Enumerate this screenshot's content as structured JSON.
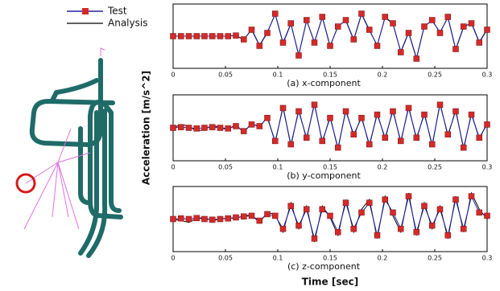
{
  "chart_data": [
    {
      "type": "line",
      "title": "(a) x-component",
      "x": [
        0,
        0.0075,
        0.015,
        0.0225,
        0.03,
        0.0375,
        0.045,
        0.0525,
        0.06,
        0.0675,
        0.075,
        0.0825,
        0.09,
        0.0975,
        0.105,
        0.1125,
        0.12,
        0.1275,
        0.135,
        0.1425,
        0.15,
        0.1575,
        0.165,
        0.1725,
        0.18,
        0.1875,
        0.195,
        0.2025,
        0.21,
        0.2175,
        0.225,
        0.2325,
        0.24,
        0.2475,
        0.255,
        0.2625,
        0.27,
        0.2775,
        0.285,
        0.2925,
        0.3
      ],
      "series": [
        {
          "name": "Analysis",
          "color": "#000000",
          "values": [
            0,
            0,
            0,
            0,
            0,
            0,
            0,
            0,
            0.03,
            -0.12,
            0.22,
            -0.28,
            0.12,
            0.68,
            -0.22,
            0.38,
            -0.58,
            0.48,
            -0.18,
            0.58,
            -0.32,
            0.32,
            0.48,
            -0.12,
            0.68,
            0.18,
            -0.28,
            0.58,
            0.38,
            -0.48,
            0.12,
            -0.68,
            0.32,
            0.48,
            0.12,
            0.58,
            -0.42,
            0.28,
            0.42,
            -0.18,
            0.22
          ]
        },
        {
          "name": "Test",
          "color": "#2020a0",
          "marker": "square",
          "marker_color": "#d42a2a",
          "values": [
            0,
            0,
            0,
            0,
            0,
            0,
            0,
            0,
            0.02,
            -0.1,
            0.2,
            -0.3,
            0.1,
            0.7,
            -0.2,
            0.4,
            -0.6,
            0.5,
            -0.2,
            0.6,
            -0.3,
            0.3,
            0.5,
            -0.1,
            0.7,
            0.2,
            -0.3,
            0.6,
            0.4,
            -0.5,
            0.1,
            -0.7,
            0.3,
            0.5,
            0.1,
            0.6,
            -0.4,
            0.3,
            0.4,
            -0.2,
            0.2
          ]
        }
      ],
      "xlim": [
        0,
        0.3
      ],
      "xticks": [
        0,
        0.05,
        0.1,
        0.15,
        0.2,
        0.25,
        0.3
      ],
      "ylim": [
        -1,
        1
      ]
    },
    {
      "type": "line",
      "title": "(b) y-component",
      "ylabel": "Acceleration [m/s^2]",
      "x": [
        0,
        0.0075,
        0.015,
        0.0225,
        0.03,
        0.0375,
        0.045,
        0.0525,
        0.06,
        0.0675,
        0.075,
        0.0825,
        0.09,
        0.0975,
        0.105,
        0.1125,
        0.12,
        0.1275,
        0.135,
        0.1425,
        0.15,
        0.1575,
        0.165,
        0.1725,
        0.18,
        0.1875,
        0.195,
        0.2025,
        0.21,
        0.2175,
        0.225,
        0.2325,
        0.24,
        0.2475,
        0.255,
        0.2625,
        0.27,
        0.2775,
        0.285,
        0.2925,
        0.3
      ],
      "series": [
        {
          "name": "Analysis",
          "color": "#000000",
          "values": [
            0,
            0.1,
            0.05,
            -0.1,
            -0.05,
            0.08,
            0,
            -0.05,
            0.1,
            -0.15,
            0.15,
            0.0,
            0.35,
            -0.45,
            0.65,
            -0.55,
            0.55,
            -0.35,
            0.75,
            -0.45,
            0.35,
            -0.65,
            0.55,
            -0.25,
            0.35,
            -0.55,
            0.45,
            -0.35,
            0.55,
            -0.45,
            0.65,
            -0.35,
            0.45,
            -0.55,
            0.75,
            -0.25,
            0.55,
            -0.65,
            0.45,
            -0.35,
            0.15
          ]
        },
        {
          "name": "Test",
          "color": "#2020a0",
          "marker": "square",
          "marker_color": "#d42a2a",
          "values": [
            0,
            0.02,
            0,
            -0.02,
            0,
            0.02,
            0,
            -0.02,
            0.05,
            -0.1,
            0.1,
            0.05,
            0.3,
            -0.4,
            0.6,
            -0.5,
            0.5,
            -0.3,
            0.7,
            -0.4,
            0.3,
            -0.6,
            0.5,
            -0.2,
            0.3,
            -0.5,
            0.4,
            -0.3,
            0.5,
            -0.4,
            0.6,
            -0.3,
            0.4,
            -0.5,
            0.7,
            -0.2,
            0.5,
            -0.6,
            0.4,
            -0.3,
            0.1
          ]
        }
      ],
      "xlim": [
        0,
        0.3
      ],
      "xticks": [
        0,
        0.05,
        0.1,
        0.15,
        0.2,
        0.25,
        0.3
      ],
      "ylim": [
        -1,
        1
      ]
    },
    {
      "type": "line",
      "title": "(c) z-component",
      "xlabel": "Time [sec]",
      "x": [
        0,
        0.0075,
        0.015,
        0.0225,
        0.03,
        0.0375,
        0.045,
        0.0525,
        0.06,
        0.0675,
        0.075,
        0.0825,
        0.09,
        0.0975,
        0.105,
        0.1125,
        0.12,
        0.1275,
        0.135,
        0.1425,
        0.15,
        0.1575,
        0.165,
        0.1725,
        0.18,
        0.1875,
        0.195,
        0.2025,
        0.21,
        0.2175,
        0.225,
        0.2325,
        0.24,
        0.2475,
        0.255,
        0.2625,
        0.27,
        0.2775,
        0.285,
        0.2925,
        0.3
      ],
      "series": [
        {
          "name": "Analysis",
          "color": "#000000",
          "values": [
            0,
            -0.05,
            -0.1,
            0.02,
            0.05,
            -0.05,
            0,
            0.03,
            0.02,
            0.1,
            0.12,
            -0.1,
            0.2,
            0.15,
            -0.4,
            0.5,
            -0.3,
            0.4,
            -0.7,
            0.4,
            0.05,
            -0.5,
            0.6,
            -0.4,
            0.3,
            0.6,
            -0.6,
            0.7,
            0.1,
            -0.4,
            0.8,
            -0.5,
            0.5,
            -0.3,
            0.4,
            -0.6,
            0.7,
            -0.4,
            0.8,
            0.3,
            0.0
          ]
        },
        {
          "name": "Test",
          "color": "#2020a0",
          "marker": "square",
          "marker_color": "#d42a2a",
          "values": [
            0,
            0.02,
            0,
            0.03,
            0,
            -0.02,
            0,
            0.02,
            0.05,
            0.08,
            0.1,
            -0.05,
            0.15,
            0.1,
            -0.3,
            0.4,
            -0.2,
            0.3,
            -0.6,
            0.3,
            0.1,
            -0.4,
            0.5,
            -0.3,
            0.2,
            0.5,
            -0.5,
            0.6,
            0.2,
            -0.3,
            0.7,
            -0.4,
            0.4,
            -0.2,
            0.3,
            -0.5,
            0.6,
            -0.3,
            0.7,
            0.2,
            0.1
          ]
        }
      ],
      "xlim": [
        0,
        0.3
      ],
      "xticks": [
        0,
        0.05,
        0.1,
        0.15,
        0.2,
        0.25,
        0.3
      ],
      "ylim": [
        -1,
        1
      ]
    }
  ]
}
